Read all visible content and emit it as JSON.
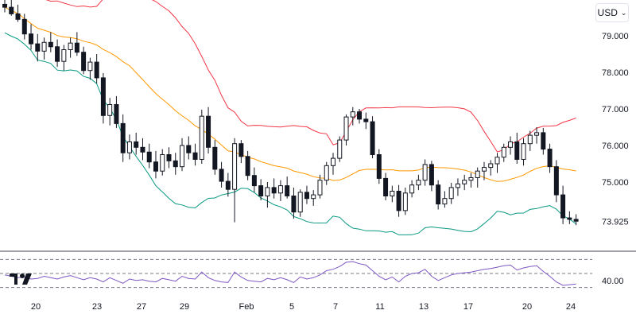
{
  "currency": {
    "label": "USD",
    "chevron_icon": "chevron-down-icon"
  },
  "logo": {
    "name": "tradingview-logo-icon",
    "text": "TV"
  },
  "colors": {
    "bull": "#131722",
    "bear": "#131722",
    "upper_band": "#f23645",
    "middle_band": "#ff9800",
    "lower_band": "#089981",
    "rsi": "#7e57c2",
    "grid": "#ffffff",
    "divider": "#434651"
  },
  "chart_data": [
    {
      "type": "candlestick",
      "title": "",
      "y_axis": {
        "ticks": [
          "79.000",
          "78.000",
          "77.000",
          "76.000",
          "75.000"
        ],
        "range": [
          73.5,
          80.0
        ]
      },
      "last_price_label": "73.925",
      "x_axis": {
        "ticks": [
          "20",
          "23",
          "27",
          "29",
          "Feb",
          "5",
          "7",
          "11",
          "13",
          "17",
          "20",
          "24"
        ]
      },
      "overlays": [
        "Bollinger Bands upper",
        "Bollinger Bands basis",
        "Bollinger Bands lower"
      ],
      "candles": [
        [
          79.86,
          79.98,
          79.64,
          79.78
        ],
        [
          79.78,
          80.02,
          79.55,
          79.6
        ],
        [
          79.6,
          79.85,
          79.38,
          79.45
        ],
        [
          79.45,
          79.6,
          78.9,
          79.05
        ],
        [
          79.05,
          79.32,
          78.62,
          78.78
        ],
        [
          78.78,
          79.05,
          78.3,
          78.58
        ],
        [
          78.58,
          78.95,
          78.35,
          78.82
        ],
        [
          78.82,
          79.1,
          78.55,
          78.7
        ],
        [
          78.7,
          78.9,
          78.15,
          78.3
        ],
        [
          78.3,
          78.75,
          78.05,
          78.62
        ],
        [
          78.62,
          78.95,
          78.4,
          78.8
        ],
        [
          78.8,
          79.1,
          78.45,
          78.55
        ],
        [
          78.55,
          78.7,
          77.95,
          78.05
        ],
        [
          78.05,
          78.4,
          77.8,
          78.28
        ],
        [
          78.28,
          78.5,
          77.7,
          77.85
        ],
        [
          77.85,
          77.98,
          76.6,
          76.82
        ],
        [
          76.82,
          77.3,
          76.55,
          77.12
        ],
        [
          77.12,
          77.35,
          76.48,
          76.6
        ],
        [
          76.6,
          76.85,
          75.55,
          75.8
        ],
        [
          75.8,
          76.3,
          75.62,
          76.1
        ],
        [
          76.1,
          76.35,
          75.75,
          75.95
        ],
        [
          75.95,
          76.2,
          75.6,
          75.82
        ],
        [
          75.82,
          76.05,
          75.38,
          75.55
        ],
        [
          75.55,
          75.85,
          75.1,
          75.3
        ],
        [
          75.3,
          75.9,
          75.18,
          75.75
        ],
        [
          75.75,
          75.95,
          75.38,
          75.58
        ],
        [
          75.58,
          75.8,
          75.2,
          75.42
        ],
        [
          75.42,
          76.2,
          75.3,
          76.0
        ],
        [
          76.0,
          76.25,
          75.62,
          75.8
        ],
        [
          75.8,
          76.05,
          75.45,
          75.62
        ],
        [
          75.62,
          76.98,
          75.5,
          76.8
        ],
        [
          76.8,
          77.05,
          75.78,
          75.95
        ],
        [
          75.95,
          76.15,
          75.2,
          75.35
        ],
        [
          75.35,
          75.55,
          74.85,
          75.02
        ],
        [
          75.02,
          75.25,
          74.6,
          74.8
        ],
        [
          74.8,
          76.2,
          73.9,
          76.05
        ],
        [
          76.05,
          76.15,
          75.52,
          75.7
        ],
        [
          75.7,
          75.85,
          75.05,
          75.18
        ],
        [
          75.18,
          75.4,
          74.72,
          74.9
        ],
        [
          74.9,
          75.08,
          74.5,
          74.62
        ],
        [
          74.62,
          75.0,
          74.3,
          74.85
        ],
        [
          74.85,
          75.1,
          74.55,
          74.7
        ],
        [
          74.7,
          75.05,
          74.48,
          74.9
        ],
        [
          74.9,
          75.15,
          74.55,
          74.62
        ],
        [
          74.62,
          74.85,
          74.0,
          74.18
        ],
        [
          74.18,
          74.8,
          74.05,
          74.72
        ],
        [
          74.72,
          74.9,
          74.4,
          74.55
        ],
        [
          74.55,
          74.78,
          74.35,
          74.65
        ],
        [
          74.65,
          75.2,
          74.55,
          75.05
        ],
        [
          75.05,
          75.55,
          74.92,
          75.45
        ],
        [
          75.45,
          75.8,
          75.2,
          75.65
        ],
        [
          75.65,
          76.25,
          75.55,
          76.15
        ],
        [
          76.15,
          76.85,
          76.0,
          76.78
        ],
        [
          76.78,
          77.05,
          76.55,
          76.92
        ],
        [
          76.92,
          77.0,
          76.6,
          76.72
        ],
        [
          76.72,
          76.9,
          76.45,
          76.65
        ],
        [
          76.65,
          76.8,
          75.65,
          75.75
        ],
        [
          75.75,
          75.9,
          74.95,
          75.1
        ],
        [
          75.1,
          75.25,
          74.5,
          74.62
        ],
        [
          74.62,
          74.9,
          74.45,
          74.75
        ],
        [
          74.75,
          74.92,
          74.05,
          74.22
        ],
        [
          74.22,
          74.85,
          74.1,
          74.7
        ],
        [
          74.7,
          75.05,
          74.58,
          74.92
        ],
        [
          74.92,
          75.2,
          74.78,
          75.05
        ],
        [
          75.05,
          75.62,
          74.9,
          75.48
        ],
        [
          75.48,
          75.58,
          74.75,
          74.92
        ],
        [
          74.92,
          75.05,
          74.25,
          74.4
        ],
        [
          74.4,
          74.75,
          74.3,
          74.55
        ],
        [
          74.55,
          74.98,
          74.4,
          74.85
        ],
        [
          74.85,
          75.1,
          74.62,
          74.95
        ],
        [
          74.95,
          75.2,
          74.78,
          75.05
        ],
        [
          75.05,
          75.25,
          74.85,
          75.12
        ],
        [
          75.12,
          75.4,
          74.85,
          75.3
        ],
        [
          75.3,
          75.55,
          75.05,
          75.4
        ],
        [
          75.4,
          75.6,
          75.18,
          75.5
        ],
        [
          75.5,
          75.8,
          75.25,
          75.68
        ],
        [
          75.68,
          76.05,
          75.55,
          75.95
        ],
        [
          75.95,
          76.25,
          75.75,
          76.1
        ],
        [
          76.1,
          76.35,
          75.5,
          75.62
        ],
        [
          75.62,
          76.2,
          75.45,
          76.05
        ],
        [
          76.05,
          76.4,
          75.85,
          76.28
        ],
        [
          76.28,
          76.5,
          76.05,
          76.35
        ],
        [
          76.35,
          76.48,
          75.75,
          75.9
        ],
        [
          75.9,
          76.05,
          75.25,
          75.42
        ],
        [
          75.42,
          75.6,
          74.45,
          74.65
        ],
        [
          74.65,
          74.9,
          73.85,
          74.02
        ],
        [
          74.02,
          74.2,
          73.85,
          73.98
        ],
        [
          73.98,
          74.12,
          73.82,
          73.93
        ]
      ]
    },
    {
      "type": "line",
      "title": "",
      "y_axis": {
        "ticks": [
          "40.00"
        ],
        "range": [
          25,
          75
        ]
      },
      "levels": [
        70,
        50,
        30
      ],
      "series": [
        {
          "values": [
            48,
            46,
            44,
            45,
            42,
            43,
            46,
            44,
            42,
            45,
            47,
            44,
            41,
            44,
            42,
            38,
            44,
            40,
            36,
            42,
            40,
            41,
            39,
            38,
            43,
            41,
            39,
            46,
            43,
            42,
            52,
            44,
            40,
            38,
            37,
            52,
            45,
            40,
            39,
            38,
            43,
            41,
            44,
            41,
            37,
            45,
            42,
            44,
            48,
            54,
            56,
            60,
            66,
            67,
            64,
            62,
            54,
            46,
            41,
            45,
            38,
            46,
            50,
            51,
            56,
            46,
            40,
            44,
            48,
            50,
            51,
            52,
            54,
            56,
            57,
            59,
            61,
            62,
            55,
            58,
            60,
            61,
            53,
            46,
            38,
            33,
            34,
            35
          ]
        }
      ]
    }
  ]
}
